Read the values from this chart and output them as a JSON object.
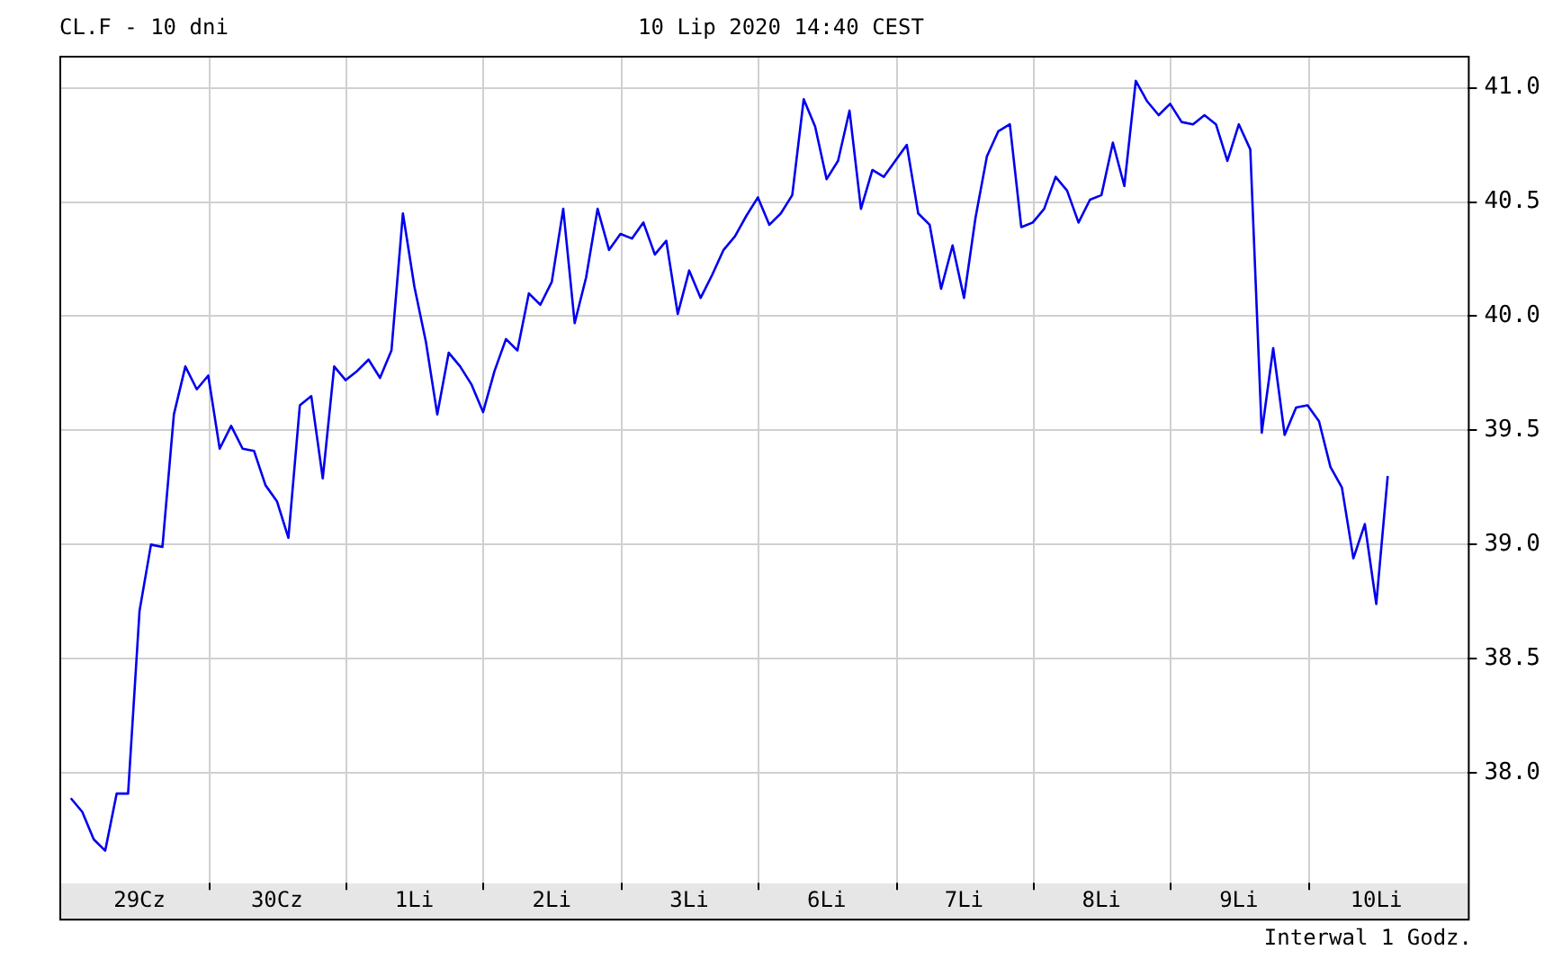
{
  "chart_data": {
    "type": "line",
    "title": "CL.F - 10 dni",
    "subtitle": "10 Lip 2020 14:40 CEST",
    "annotations": [
      "Interwal 1 Godz."
    ],
    "categories": [
      null,
      null,
      null,
      null,
      null,
      null,
      null,
      "29Cz",
      null,
      null,
      null,
      null,
      null,
      null,
      null,
      null,
      null,
      null,
      null,
      "30Cz",
      null,
      null,
      null,
      null,
      null,
      null,
      null,
      null,
      null,
      null,
      null,
      "1Li",
      null,
      null,
      null,
      null,
      null,
      null,
      null,
      null,
      null,
      null,
      null,
      "2Li",
      null,
      null,
      null,
      null,
      null,
      null,
      null,
      null,
      null,
      null,
      null,
      "3Li",
      null,
      null,
      null,
      null,
      null,
      null,
      null,
      null,
      null,
      null,
      null,
      "6Li",
      null,
      null,
      null,
      null,
      null,
      null,
      null,
      null,
      null,
      null,
      null,
      "7Li",
      null,
      null,
      null,
      null,
      null,
      null,
      null,
      null,
      null,
      null,
      null,
      "8Li",
      null,
      null,
      null,
      null,
      null,
      null,
      null,
      null,
      null,
      null,
      null,
      "9Li",
      null,
      null,
      null,
      null,
      null,
      null,
      null,
      null,
      null,
      null,
      null,
      "10Li",
      null,
      null,
      null,
      null,
      null,
      null,
      null,
      null
    ],
    "ylim": [
      37.52,
      41.14
    ],
    "yticks": [
      {
        "value": 38,
        "label": "38.0"
      },
      {
        "value": 38.5,
        "label": "38.5"
      },
      {
        "value": 39,
        "label": "39.0"
      },
      {
        "value": 39.5,
        "label": "39.5"
      },
      {
        "value": 40,
        "label": "40.0"
      },
      {
        "value": 40.5,
        "label": "40.5"
      },
      {
        "value": 41,
        "label": "41.0"
      }
    ],
    "grid": true,
    "legend": false,
    "marker": "none",
    "line_style": "solid",
    "series": [
      {
        "color": "#0000ee",
        "values": [
          null,
          37.89,
          37.83,
          37.71,
          37.66,
          37.91,
          37.91,
          38.71,
          39.0,
          38.99,
          39.57,
          39.78,
          39.68,
          39.74,
          39.42,
          39.52,
          39.42,
          39.41,
          39.26,
          39.19,
          39.03,
          39.61,
          39.65,
          39.29,
          39.78,
          39.72,
          39.76,
          39.81,
          39.73,
          39.85,
          40.45,
          40.13,
          39.89,
          39.57,
          39.84,
          39.78,
          39.7,
          39.58,
          39.76,
          39.9,
          39.85,
          40.1,
          40.05,
          40.15,
          40.47,
          39.97,
          40.17,
          40.47,
          40.29,
          40.36,
          40.34,
          40.41,
          40.27,
          40.33,
          40.01,
          40.2,
          40.08,
          40.18,
          40.29,
          40.35,
          40.44,
          40.52,
          40.4,
          40.45,
          40.53,
          40.95,
          40.83,
          40.6,
          40.68,
          40.9,
          40.47,
          40.64,
          40.61,
          40.68,
          40.75,
          40.45,
          40.4,
          40.12,
          40.31,
          40.08,
          40.43,
          40.7,
          40.81,
          40.84,
          40.39,
          40.41,
          40.47,
          40.61,
          40.55,
          40.41,
          40.51,
          40.53,
          40.76,
          40.57,
          41.03,
          40.94,
          40.88,
          40.93,
          40.85,
          40.84,
          40.88,
          40.84,
          40.68,
          40.84,
          40.73,
          39.49,
          39.86,
          39.48,
          39.6,
          39.61,
          39.54,
          39.34,
          39.25,
          38.94,
          39.09,
          38.74,
          39.3,
          null,
          null,
          null,
          null,
          null,
          null,
          null
        ]
      }
    ]
  }
}
